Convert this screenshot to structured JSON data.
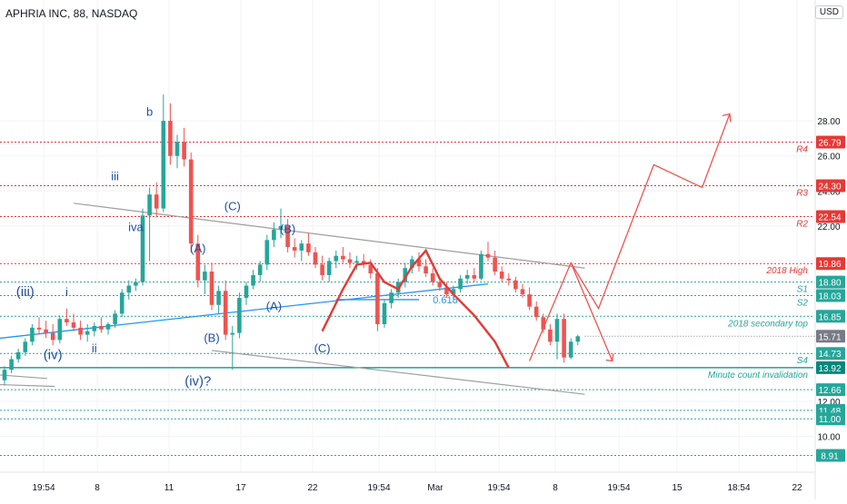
{
  "header": {
    "title": "APHRIA INC, 88, NASDAQ",
    "currency": "USD"
  },
  "colors": {
    "up": "#26a69a",
    "down": "#ef5350",
    "resistance": "#e53935",
    "support": "#26a69a",
    "trendline": "#2196f3",
    "channel": "#9e9e9e",
    "wave_label": "#1e4fa3",
    "projection": "#ef5350",
    "tag_gray": "#787b86"
  },
  "chart_data": {
    "type": "candlestick",
    "y_axis": {
      "ticks": [
        10.0,
        12.0,
        20.0,
        22.0,
        24.0,
        26.0,
        28.0
      ]
    },
    "x_axis": {
      "ticks": [
        "19:54",
        "8",
        "11",
        "17",
        "22",
        "19:54",
        "Mar",
        "19:54",
        "8",
        "19:54",
        "15",
        "18:54",
        "22"
      ]
    },
    "levels": [
      {
        "value": 26.79,
        "text": "26.79",
        "label": "R4",
        "kind": "resistance"
      },
      {
        "value": 24.3,
        "text": "24.30",
        "label": "R3",
        "kind": "resistance"
      },
      {
        "value": 22.54,
        "text": "22.54",
        "label": "R2",
        "kind": "resistance"
      },
      {
        "value": 19.86,
        "text": "19.86",
        "label": "2018 High",
        "kind": "resistance"
      },
      {
        "value": 18.8,
        "text": "18.80",
        "label": "S1",
        "kind": "support"
      },
      {
        "value": 18.03,
        "text": "18.03",
        "label": "S2",
        "kind": "support"
      },
      {
        "value": 16.85,
        "text": "16.85",
        "label": "2018 secondary top",
        "kind": "support"
      },
      {
        "value": 14.73,
        "text": "14.73",
        "label": "S4",
        "kind": "support"
      },
      {
        "value": 13.92,
        "text": "13.92",
        "label": "Minute count invalidation",
        "kind": "invalidation"
      },
      {
        "value": 12.66,
        "text": "12.66",
        "label": "",
        "kind": "support"
      },
      {
        "value": 11.48,
        "text": "11.48",
        "label": "",
        "kind": "support"
      },
      {
        "value": 11.0,
        "text": "11.00",
        "label": "",
        "kind": "support"
      },
      {
        "value": 8.91,
        "text": "8.91",
        "label": "",
        "kind": "support"
      }
    ],
    "last_price": {
      "value": 15.71,
      "text": "15.71"
    },
    "series": [
      {
        "name": "",
        "ohlc": [
          [
            13.2,
            14.0,
            12.9,
            13.8
          ],
          [
            13.8,
            14.6,
            13.6,
            14.4
          ],
          [
            14.4,
            15.0,
            14.2,
            14.8
          ],
          [
            14.8,
            15.6,
            14.6,
            15.4
          ],
          [
            15.4,
            16.4,
            15.2,
            16.2
          ],
          [
            16.2,
            16.8,
            15.8,
            16.1
          ],
          [
            16.1,
            16.6,
            15.6,
            15.9
          ],
          [
            15.9,
            16.4,
            15.2,
            15.5
          ],
          [
            15.5,
            16.9,
            15.3,
            16.7
          ],
          [
            16.7,
            17.3,
            16.3,
            16.5
          ],
          [
            16.5,
            17.0,
            16.0,
            16.2
          ],
          [
            16.2,
            16.6,
            15.5,
            15.8
          ],
          [
            15.8,
            16.4,
            15.4,
            16.0
          ],
          [
            16.0,
            16.5,
            15.7,
            16.3
          ],
          [
            16.3,
            16.8,
            15.9,
            16.1
          ],
          [
            16.1,
            16.5,
            15.8,
            16.4
          ],
          [
            16.4,
            17.2,
            16.2,
            17.0
          ],
          [
            17.0,
            18.4,
            16.8,
            18.2
          ],
          [
            18.2,
            18.9,
            17.8,
            18.6
          ],
          [
            18.6,
            19.0,
            18.3,
            18.8
          ],
          [
            18.8,
            23.0,
            18.6,
            22.6
          ],
          [
            22.6,
            24.2,
            20.0,
            23.8
          ],
          [
            23.8,
            24.5,
            22.5,
            23.0
          ],
          [
            23.0,
            29.5,
            22.8,
            28.0
          ],
          [
            28.0,
            29.0,
            25.5,
            26.0
          ],
          [
            26.0,
            27.2,
            25.3,
            26.8
          ],
          [
            26.8,
            27.6,
            25.4,
            25.8
          ],
          [
            25.8,
            26.2,
            20.5,
            21.0
          ],
          [
            21.0,
            21.5,
            18.5,
            18.9
          ],
          [
            18.9,
            19.8,
            18.1,
            19.4
          ],
          [
            19.4,
            19.9,
            17.2,
            17.5
          ],
          [
            17.5,
            18.6,
            17.0,
            18.3
          ],
          [
            18.3,
            18.9,
            15.5,
            15.8
          ],
          [
            15.8,
            16.3,
            13.8,
            15.9
          ],
          [
            15.9,
            18.2,
            15.6,
            17.9
          ],
          [
            17.9,
            18.8,
            17.5,
            18.6
          ],
          [
            18.6,
            19.5,
            18.4,
            19.2
          ],
          [
            19.2,
            20.0,
            18.8,
            19.8
          ],
          [
            19.8,
            21.5,
            19.5,
            21.2
          ],
          [
            21.2,
            22.2,
            20.8,
            21.8
          ],
          [
            21.8,
            23.0,
            21.3,
            22.0
          ],
          [
            22.0,
            22.4,
            20.5,
            20.8
          ],
          [
            20.8,
            21.3,
            20.2,
            20.6
          ],
          [
            20.6,
            21.2,
            20.0,
            21.0
          ],
          [
            21.0,
            21.6,
            20.3,
            20.5
          ],
          [
            20.5,
            20.8,
            19.6,
            19.8
          ],
          [
            19.8,
            20.3,
            18.9,
            19.2
          ],
          [
            19.2,
            20.2,
            18.8,
            20.0
          ],
          [
            20.0,
            20.6,
            19.6,
            20.3
          ],
          [
            20.3,
            20.8,
            19.9,
            20.1
          ],
          [
            20.1,
            20.5,
            19.6,
            19.9
          ],
          [
            19.9,
            20.3,
            19.5,
            20.0
          ],
          [
            20.0,
            20.4,
            19.6,
            19.8
          ],
          [
            19.8,
            20.1,
            19.0,
            19.3
          ],
          [
            19.3,
            19.6,
            16.0,
            16.4
          ],
          [
            16.4,
            17.8,
            16.2,
            17.6
          ],
          [
            17.6,
            18.4,
            17.3,
            18.2
          ],
          [
            18.2,
            19.0,
            17.9,
            18.8
          ],
          [
            18.8,
            19.9,
            18.5,
            19.6
          ],
          [
            19.6,
            20.3,
            19.3,
            20.1
          ],
          [
            20.1,
            20.5,
            19.4,
            19.7
          ],
          [
            19.7,
            20.1,
            19.1,
            19.3
          ],
          [
            19.3,
            19.6,
            18.6,
            18.8
          ],
          [
            18.8,
            19.1,
            18.3,
            18.5
          ],
          [
            18.5,
            18.8,
            17.9,
            18.1
          ],
          [
            18.1,
            18.6,
            17.8,
            18.4
          ],
          [
            18.4,
            19.2,
            18.2,
            19.0
          ],
          [
            19.0,
            19.5,
            18.7,
            19.2
          ],
          [
            19.2,
            19.6,
            18.8,
            19.0
          ],
          [
            19.0,
            20.6,
            18.9,
            20.4
          ],
          [
            20.4,
            21.1,
            20.0,
            20.2
          ],
          [
            20.2,
            20.6,
            19.2,
            19.4
          ],
          [
            19.4,
            19.7,
            18.8,
            19.0
          ],
          [
            19.0,
            19.3,
            18.6,
            18.9
          ],
          [
            18.9,
            19.1,
            18.2,
            18.4
          ],
          [
            18.4,
            18.7,
            17.9,
            18.1
          ],
          [
            18.1,
            18.5,
            17.2,
            17.4
          ],
          [
            17.4,
            17.7,
            16.6,
            16.8
          ],
          [
            16.8,
            17.0,
            15.9,
            16.1
          ],
          [
            16.1,
            16.4,
            15.2,
            15.4
          ],
          [
            15.4,
            17.0,
            14.4,
            16.7
          ],
          [
            16.7,
            17.0,
            14.2,
            14.5
          ],
          [
            14.5,
            15.6,
            14.4,
            15.4
          ],
          [
            15.4,
            15.8,
            15.2,
            15.71
          ]
        ]
      }
    ],
    "channel": {
      "upper": {
        "start": [
          10,
          23.3
        ],
        "end": [
          84,
          19.6
        ]
      },
      "lower": {
        "start": [
          -40,
          13.2
        ],
        "end": [
          84,
          13.0
        ]
      },
      "note": "parallel descending channel"
    },
    "trendline": {
      "start": [
        -40,
        15.6
      ],
      "end": [
        70,
        18.7
      ],
      "label": "0.618"
    },
    "projection": [
      {
        "x": 76,
        "y": 14.3
      },
      {
        "x": 82,
        "y": 19.9
      },
      {
        "x": 86,
        "y": 17.3
      },
      {
        "x": 94,
        "y": 25.5
      },
      {
        "x": 101,
        "y": 24.2
      },
      {
        "x": 105,
        "y": 28.4
      }
    ],
    "projection_down": [
      {
        "x": 82,
        "y": 19.9
      },
      {
        "x": 88,
        "y": 14.3
      }
    ],
    "hs_pattern": [
      [
        46,
        16.0
      ],
      [
        49,
        18.4
      ],
      [
        51,
        19.8
      ],
      [
        53,
        19.9
      ],
      [
        55,
        18.8
      ],
      [
        57,
        18.4
      ],
      [
        59,
        19.7
      ],
      [
        61,
        20.6
      ],
      [
        63,
        19.0
      ],
      [
        65,
        18.1
      ],
      [
        68,
        16.9
      ],
      [
        71,
        15.4
      ],
      [
        73,
        13.9
      ]
    ],
    "wave_labels": [
      {
        "text": "b",
        "x": 21,
        "y": 28.3
      },
      {
        "text": "iii",
        "x": 16,
        "y": 24.6
      },
      {
        "text": "iva",
        "x": 19,
        "y": 21.7
      },
      {
        "text": "(iii)",
        "x": 3,
        "y": 18.0
      },
      {
        "text": "i",
        "x": 9,
        "y": 18.0
      },
      {
        "text": "(iv)",
        "x": 7,
        "y": 14.4
      },
      {
        "text": "ii",
        "x": 13,
        "y": 14.8
      },
      {
        "text": "(iv)?",
        "x": 28,
        "y": 12.9
      },
      {
        "text": "(A)",
        "x": 28,
        "y": 20.5
      },
      {
        "text": "(B)",
        "x": 30,
        "y": 15.4
      },
      {
        "text": "(C)",
        "x": 33,
        "y": 22.9
      },
      {
        "text": "(B)",
        "x": 41,
        "y": 21.6
      },
      {
        "text": "(A)",
        "x": 39,
        "y": 17.2
      },
      {
        "text": "(C)",
        "x": 46,
        "y": 14.8
      }
    ]
  }
}
